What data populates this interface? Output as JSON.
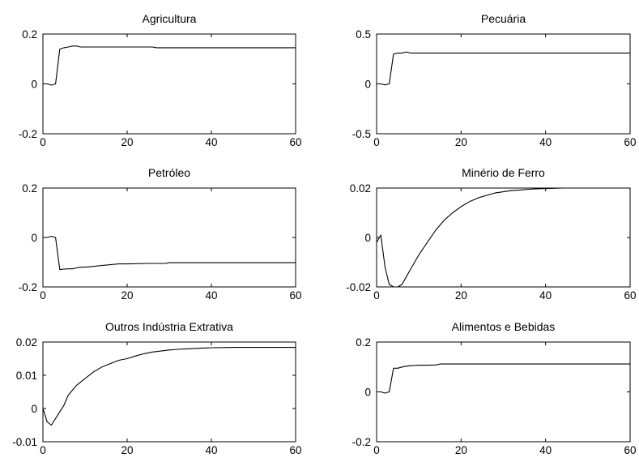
{
  "chart_data": [
    {
      "type": "line",
      "title": "Agricultura",
      "xlim": [
        0,
        60
      ],
      "ylim": [
        -0.2,
        0.2
      ],
      "xticks": [
        0,
        20,
        40,
        60
      ],
      "xtick_labels": [
        "0",
        "20",
        "40",
        "60"
      ],
      "yticks": [
        -0.2,
        0,
        0.2
      ],
      "ytick_labels": [
        "-0.2",
        "0",
        "0.2"
      ],
      "x": [
        0,
        1,
        2,
        3,
        4,
        5,
        6,
        7,
        8,
        9,
        10,
        12,
        15,
        20,
        26,
        27,
        30,
        40,
        50,
        60
      ],
      "y": [
        0,
        0,
        -0.005,
        0,
        0.14,
        0.145,
        0.148,
        0.152,
        0.152,
        0.148,
        0.148,
        0.148,
        0.148,
        0.148,
        0.148,
        0.145,
        0.145,
        0.145,
        0.145,
        0.145
      ]
    },
    {
      "type": "line",
      "title": "Pecuária",
      "xlim": [
        0,
        60
      ],
      "ylim": [
        -0.5,
        0.5
      ],
      "xticks": [
        0,
        20,
        40,
        60
      ],
      "xtick_labels": [
        "0",
        "20",
        "40",
        "60"
      ],
      "yticks": [
        -0.5,
        0,
        0.5
      ],
      "ytick_labels": [
        "-0.5",
        "0",
        "0.5"
      ],
      "x": [
        0,
        1,
        2,
        3,
        4,
        5,
        6,
        7,
        8,
        10,
        20,
        30,
        40,
        50,
        60
      ],
      "y": [
        0,
        0,
        -0.01,
        0,
        0.3,
        0.31,
        0.31,
        0.32,
        0.31,
        0.31,
        0.31,
        0.31,
        0.31,
        0.31,
        0.31
      ]
    },
    {
      "type": "line",
      "title": "Petróleo",
      "xlim": [
        0,
        60
      ],
      "ylim": [
        -0.2,
        0.2
      ],
      "xticks": [
        0,
        20,
        40,
        60
      ],
      "xtick_labels": [
        "0",
        "20",
        "40",
        "60"
      ],
      "yticks": [
        -0.2,
        0,
        0.2
      ],
      "ytick_labels": [
        "-0.2",
        "0",
        "0.2"
      ],
      "x": [
        0,
        1,
        2,
        3,
        4,
        5,
        6,
        7,
        8,
        9,
        10,
        12,
        14,
        16,
        18,
        20,
        25,
        29,
        30,
        40,
        50,
        60
      ],
      "y": [
        0,
        0,
        0.005,
        0,
        -0.13,
        -0.128,
        -0.127,
        -0.127,
        -0.123,
        -0.12,
        -0.12,
        -0.117,
        -0.113,
        -0.11,
        -0.107,
        -0.107,
        -0.105,
        -0.105,
        -0.102,
        -0.102,
        -0.102,
        -0.102
      ]
    },
    {
      "type": "line",
      "title": "Minério de Ferro",
      "xlim": [
        0,
        60
      ],
      "ylim": [
        -0.02,
        0.02
      ],
      "xticks": [
        0,
        20,
        40,
        60
      ],
      "xtick_labels": [
        "0",
        "20",
        "40",
        "60"
      ],
      "yticks": [
        -0.02,
        0,
        0.02
      ],
      "ytick_labels": [
        "-0.02",
        "0",
        "0.02"
      ],
      "x": [
        0,
        1,
        2,
        3,
        4,
        5,
        6,
        7,
        8,
        9,
        10,
        12,
        14,
        16,
        18,
        20,
        22,
        24,
        26,
        28,
        30,
        32,
        34,
        36,
        38,
        40,
        42,
        44,
        46
      ],
      "y": [
        -0.002,
        0.001,
        -0.012,
        -0.019,
        -0.02,
        -0.02,
        -0.019,
        -0.016,
        -0.013,
        -0.01,
        -0.007,
        -0.002,
        0.003,
        0.007,
        0.01,
        0.0125,
        0.0145,
        0.016,
        0.017,
        0.018,
        0.0185,
        0.019,
        0.0192,
        0.0195,
        0.0197,
        0.0198,
        0.0199,
        0.02,
        0.02
      ]
    },
    {
      "type": "line",
      "title": "Outros Indústria Extrativa",
      "xlim": [
        0,
        60
      ],
      "ylim": [
        -0.01,
        0.02
      ],
      "xticks": [
        0,
        20,
        40,
        60
      ],
      "xtick_labels": [
        "0",
        "20",
        "40",
        "60"
      ],
      "yticks": [
        -0.01,
        0,
        0.01,
        0.02
      ],
      "ytick_labels": [
        "-0.01",
        "0",
        "0.01",
        "0.02"
      ],
      "x": [
        0,
        1,
        2,
        3,
        4,
        5,
        6,
        7,
        8,
        10,
        12,
        14,
        16,
        18,
        20,
        22,
        24,
        26,
        28,
        30,
        32,
        35,
        38,
        40,
        45,
        50,
        60
      ],
      "y": [
        0,
        -0.004,
        -0.005,
        -0.003,
        -0.001,
        0.001,
        0.004,
        0.0055,
        0.007,
        0.009,
        0.011,
        0.0125,
        0.0135,
        0.0145,
        0.015,
        0.0158,
        0.0165,
        0.017,
        0.0173,
        0.0176,
        0.0178,
        0.018,
        0.0182,
        0.0183,
        0.0184,
        0.0184,
        0.0184
      ]
    },
    {
      "type": "line",
      "title": "Alimentos e Bebidas",
      "xlim": [
        0,
        60
      ],
      "ylim": [
        -0.2,
        0.2
      ],
      "xticks": [
        0,
        20,
        40,
        60
      ],
      "xtick_labels": [
        "0",
        "20",
        "40",
        "60"
      ],
      "yticks": [
        -0.2,
        0,
        0.2
      ],
      "ytick_labels": [
        "-0.2",
        "0",
        "0.2"
      ],
      "x": [
        0,
        1,
        2,
        3,
        4,
        5,
        6,
        7,
        8,
        10,
        12,
        14,
        15,
        20,
        30,
        40,
        50,
        60
      ],
      "y": [
        0,
        0,
        -0.005,
        0,
        0.095,
        0.095,
        0.1,
        0.103,
        0.105,
        0.107,
        0.107,
        0.108,
        0.112,
        0.112,
        0.112,
        0.112,
        0.112,
        0.112
      ]
    }
  ]
}
